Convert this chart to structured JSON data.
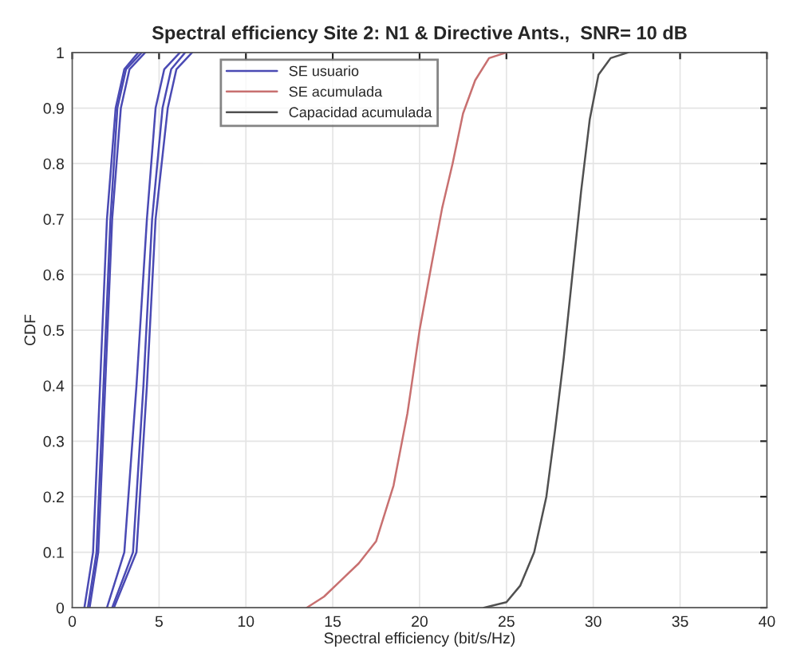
{
  "chart_data": {
    "type": "line",
    "title": "Spectral efficiency Site 2: N1 & Directive Ants.,  SNR= 10 dB",
    "xlabel": "Spectral efficiency (bit/s/Hz)",
    "ylabel": "CDF",
    "xlim": [
      0,
      40
    ],
    "ylim": [
      0,
      1
    ],
    "xticks": [
      0,
      5,
      10,
      15,
      20,
      25,
      30,
      35,
      40
    ],
    "yticks": [
      0,
      0.1,
      0.2,
      0.3,
      0.4,
      0.5,
      0.6,
      0.7,
      0.8,
      0.9,
      1
    ],
    "grid": true,
    "legend": "top",
    "line_style": "solid",
    "series": [
      {
        "name": "SE usuario",
        "color": "#4a4ab4",
        "x": [
          0.7,
          1.2,
          1.6,
          2.0,
          2.5,
          3.0,
          3.8
        ],
        "values": [
          0,
          0.1,
          0.4,
          0.7,
          0.9,
          0.97,
          1
        ]
      },
      {
        "color": "#4a4ab4",
        "x": [
          1.0,
          1.5,
          1.9,
          2.3,
          2.8,
          3.3,
          4.2
        ],
        "values": [
          0,
          0.1,
          0.4,
          0.7,
          0.9,
          0.97,
          1
        ]
      },
      {
        "color": "#4a4ab4",
        "x": [
          0.9,
          1.4,
          1.8,
          2.2,
          2.6,
          3.1,
          4.0
        ],
        "values": [
          0,
          0.1,
          0.4,
          0.7,
          0.9,
          0.97,
          1
        ]
      },
      {
        "color": "#4a4ab4",
        "x": [
          2.0,
          3.0,
          3.7,
          4.3,
          4.8,
          5.3,
          6.2
        ],
        "values": [
          0,
          0.1,
          0.4,
          0.7,
          0.9,
          0.97,
          1
        ]
      },
      {
        "color": "#4a4ab4",
        "x": [
          2.3,
          3.5,
          4.1,
          4.6,
          5.2,
          5.7,
          6.5
        ],
        "values": [
          0,
          0.1,
          0.4,
          0.7,
          0.9,
          0.97,
          1
        ]
      },
      {
        "color": "#4a4ab4",
        "x": [
          2.4,
          3.7,
          4.3,
          4.8,
          5.5,
          6.0,
          6.9
        ],
        "values": [
          0,
          0.1,
          0.4,
          0.7,
          0.9,
          0.97,
          1
        ]
      },
      {
        "name": "SE acumulada",
        "color": "#c87070",
        "x": [
          13.5,
          14.5,
          15.5,
          16.5,
          17.5,
          18.5,
          19.3,
          20.0,
          20.7,
          21.3,
          21.9,
          22.5,
          23.2,
          24.0,
          25.0
        ],
        "values": [
          0,
          0.02,
          0.05,
          0.08,
          0.12,
          0.22,
          0.35,
          0.5,
          0.62,
          0.72,
          0.8,
          0.89,
          0.95,
          0.99,
          1
        ]
      },
      {
        "name": "Capacidad acumulada",
        "color": "#505050",
        "x": [
          23.7,
          25.0,
          25.8,
          26.6,
          27.3,
          27.8,
          28.3,
          28.8,
          29.3,
          29.8,
          30.3,
          31.0,
          32.0
        ],
        "values": [
          0,
          0.01,
          0.04,
          0.1,
          0.2,
          0.32,
          0.45,
          0.6,
          0.75,
          0.88,
          0.96,
          0.99,
          1
        ]
      }
    ]
  }
}
